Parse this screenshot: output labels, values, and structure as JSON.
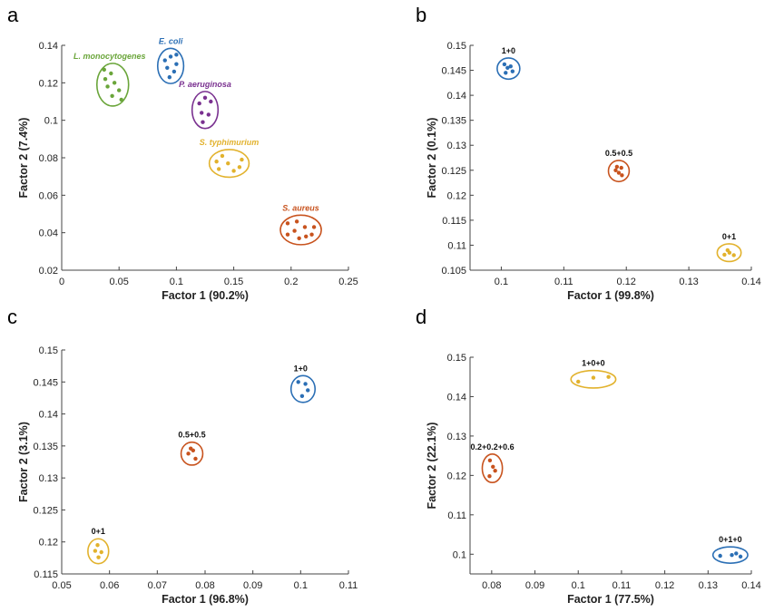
{
  "chart_data": [
    {
      "panel": "a",
      "type": "scatter",
      "xlabel": "Factor 1 (90.2%)",
      "ylabel": "Factor 2 (7.4%)",
      "xlim": [
        0,
        0.25
      ],
      "ylim": [
        0.02,
        0.14
      ],
      "xticks": [
        0,
        0.05,
        0.1,
        0.15,
        0.2,
        0.25
      ],
      "xtick_labels": [
        "0",
        "0.05",
        "0.1",
        "0.15",
        "0.2",
        "0.25"
      ],
      "yticks": [
        0.02,
        0.04,
        0.06,
        0.08,
        0.1,
        0.12,
        0.14
      ],
      "ytick_labels": [
        "0.02",
        "0.04",
        "0.06",
        "0.08",
        "0.1",
        "0.12",
        "0.14"
      ],
      "label_style": "italic",
      "groups": [
        {
          "name": "L. monocytogenes",
          "color": "#6aa53a",
          "label_pos": "top-left",
          "points": [
            [
              0.037,
              0.127
            ],
            [
              0.043,
              0.125
            ],
            [
              0.046,
              0.12
            ],
            [
              0.04,
              0.118
            ],
            [
              0.05,
              0.116
            ],
            [
              0.044,
              0.113
            ],
            [
              0.052,
              0.111
            ],
            [
              0.038,
              0.122
            ]
          ]
        },
        {
          "name": "E. coli",
          "color": "#2b6fb5",
          "label_pos": "top",
          "points": [
            [
              0.09,
              0.132
            ],
            [
              0.095,
              0.134
            ],
            [
              0.1,
              0.135
            ],
            [
              0.092,
              0.128
            ],
            [
              0.098,
              0.126
            ],
            [
              0.094,
              0.123
            ],
            [
              0.1,
              0.13
            ]
          ]
        },
        {
          "name": "P. aeruginosa",
          "color": "#7a3190",
          "label_pos": "top",
          "points": [
            [
              0.12,
              0.109
            ],
            [
              0.125,
              0.112
            ],
            [
              0.13,
              0.11
            ],
            [
              0.122,
              0.104
            ],
            [
              0.128,
              0.103
            ],
            [
              0.123,
              0.099
            ]
          ]
        },
        {
          "name": "S. typhimurium",
          "color": "#e2b22d",
          "label_pos": "top",
          "points": [
            [
              0.135,
              0.078
            ],
            [
              0.14,
              0.081
            ],
            [
              0.145,
              0.077
            ],
            [
              0.15,
              0.073
            ],
            [
              0.137,
              0.074
            ],
            [
              0.155,
              0.075
            ],
            [
              0.157,
              0.079
            ]
          ]
        },
        {
          "name": "S. aureus",
          "color": "#c8531e",
          "label_pos": "top",
          "points": [
            [
              0.197,
              0.045
            ],
            [
              0.205,
              0.046
            ],
            [
              0.212,
              0.043
            ],
            [
              0.203,
              0.041
            ],
            [
              0.218,
              0.039
            ],
            [
              0.22,
              0.043
            ],
            [
              0.207,
              0.037
            ],
            [
              0.213,
              0.038
            ],
            [
              0.197,
              0.039
            ]
          ]
        }
      ]
    },
    {
      "panel": "b",
      "type": "scatter",
      "xlabel": "Factor 1 (99.8%)",
      "ylabel": "Factor 2 (0.1%)",
      "xlim": [
        0.095,
        0.14
      ],
      "ylim": [
        0.105,
        0.15
      ],
      "xticks": [
        0.1,
        0.11,
        0.12,
        0.13,
        0.14
      ],
      "xtick_labels": [
        "0.1",
        "0.11",
        "0.12",
        "0.13",
        "0.14"
      ],
      "yticks": [
        0.105,
        0.11,
        0.115,
        0.12,
        0.125,
        0.13,
        0.135,
        0.14,
        0.145,
        0.15
      ],
      "ytick_labels": [
        "0.105",
        "0.11",
        "0.115",
        "0.12",
        "0.125",
        "0.13",
        "0.135",
        "0.14",
        "0.145",
        "0.15"
      ],
      "label_style": "bold",
      "groups": [
        {
          "name": "1+0",
          "color": "#2b6fb5",
          "label_pos": "top",
          "points": [
            [
              0.1005,
              0.1462
            ],
            [
              0.101,
              0.1455
            ],
            [
              0.1018,
              0.1448
            ],
            [
              0.1007,
              0.1445
            ],
            [
              0.1015,
              0.1458
            ]
          ]
        },
        {
          "name": "0.5+0.5",
          "color": "#c8531e",
          "label_pos": "top",
          "points": [
            [
              0.1185,
              0.1257
            ],
            [
              0.1192,
              0.1255
            ],
            [
              0.1188,
              0.1245
            ],
            [
              0.1193,
              0.124
            ],
            [
              0.1183,
              0.125
            ]
          ]
        },
        {
          "name": "0+1",
          "color": "#e2b22d",
          "label_pos": "top",
          "points": [
            [
              0.1357,
              0.1081
            ],
            [
              0.1362,
              0.109
            ],
            [
              0.1372,
              0.108
            ],
            [
              0.1365,
              0.1085
            ]
          ]
        }
      ]
    },
    {
      "panel": "c",
      "type": "scatter",
      "xlabel": "Factor 1 (96.8%)",
      "ylabel": "Factor 2 (3.1%)",
      "xlim": [
        0.05,
        0.11
      ],
      "ylim": [
        0.115,
        0.15
      ],
      "xticks": [
        0.05,
        0.06,
        0.07,
        0.08,
        0.09,
        0.1,
        0.11
      ],
      "xtick_labels": [
        "0.05",
        "0.06",
        "0.07",
        "0.08",
        "0.09",
        "0.1",
        "0.11"
      ],
      "yticks": [
        0.115,
        0.12,
        0.125,
        0.13,
        0.135,
        0.14,
        0.145,
        0.15
      ],
      "ytick_labels": [
        "0.115",
        "0.12",
        "0.125",
        "0.13",
        "0.135",
        "0.14",
        "0.145",
        "0.15"
      ],
      "label_style": "bold",
      "groups": [
        {
          "name": "1+0",
          "color": "#2b6fb5",
          "label_pos": "top-left",
          "points": [
            [
              0.0995,
              0.145
            ],
            [
              0.101,
              0.1447
            ],
            [
              0.1015,
              0.1437
            ],
            [
              0.1003,
              0.1428
            ]
          ]
        },
        {
          "name": "0.5+0.5",
          "color": "#c8531e",
          "label_pos": "top",
          "points": [
            [
              0.0765,
              0.1338
            ],
            [
              0.0775,
              0.1343
            ],
            [
              0.078,
              0.133
            ],
            [
              0.077,
              0.1346
            ]
          ]
        },
        {
          "name": "0+1",
          "color": "#e2b22d",
          "label_pos": "top",
          "points": [
            [
              0.0575,
              0.1195
            ],
            [
              0.0583,
              0.1184
            ],
            [
              0.0577,
              0.1176
            ],
            [
              0.057,
              0.1186
            ]
          ]
        }
      ]
    },
    {
      "panel": "d",
      "type": "scatter",
      "xlabel": "Factor 1 (77.5%)",
      "ylabel": "Factor 2 (22.1%)",
      "xlim": [
        0.075,
        0.14
      ],
      "ylim": [
        0.095,
        0.15
      ],
      "xticks": [
        0.08,
        0.09,
        0.1,
        0.11,
        0.12,
        0.13,
        0.14
      ],
      "xtick_labels": [
        "0.08",
        "0.09",
        "0.1",
        "0.11",
        "0.12",
        "0.13",
        "0.14"
      ],
      "yticks": [
        0.1,
        0.11,
        0.12,
        0.13,
        0.14,
        0.15
      ],
      "ytick_labels": [
        "0.1",
        "0.11",
        "0.12",
        "0.13",
        "0.14",
        "0.15"
      ],
      "label_style": "bold",
      "groups": [
        {
          "name": "1+0+0",
          "color": "#e2b22d",
          "label_pos": "top",
          "points": [
            [
              0.1,
              0.1438
            ],
            [
              0.1035,
              0.1448
            ],
            [
              0.107,
              0.145
            ]
          ]
        },
        {
          "name": "0.2+0.2+0.6",
          "color": "#c8531e",
          "label_pos": "top",
          "points": [
            [
              0.0796,
              0.1238
            ],
            [
              0.0803,
              0.1222
            ],
            [
              0.0808,
              0.1212
            ],
            [
              0.0795,
              0.1198
            ]
          ]
        },
        {
          "name": "0+1+0",
          "color": "#2b6fb5",
          "label_pos": "top",
          "points": [
            [
              0.1328,
              0.0996
            ],
            [
              0.1355,
              0.0998
            ],
            [
              0.1365,
              0.1002
            ],
            [
              0.1375,
              0.0994
            ]
          ]
        }
      ]
    }
  ]
}
